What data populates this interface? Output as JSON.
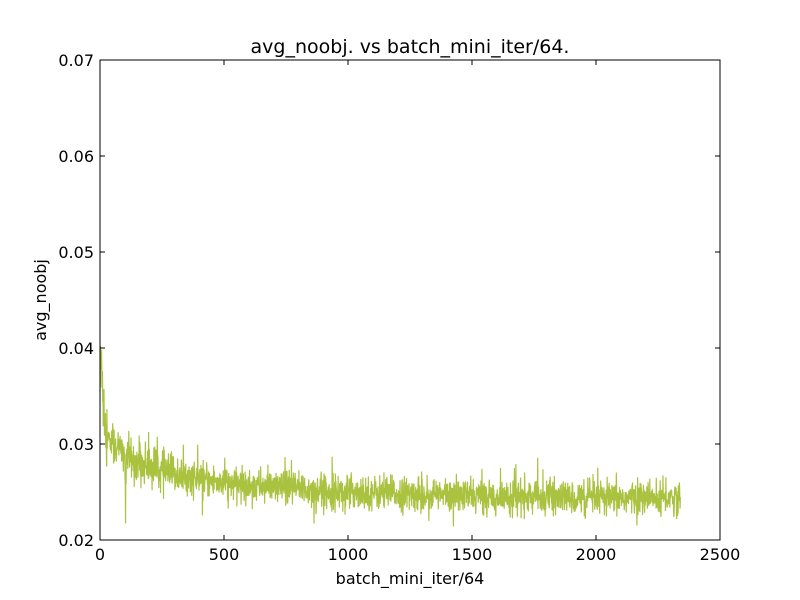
{
  "chart_data": {
    "type": "line",
    "title": "avg_noobj. vs batch_mini_iter/64.",
    "xlabel": "batch_mini_iter/64",
    "ylabel": "avg_noobj",
    "xlim": [
      0,
      2500
    ],
    "ylim": [
      0.02,
      0.07
    ],
    "xticks": [
      0,
      500,
      1000,
      1500,
      2000,
      2500
    ],
    "yticks": [
      0.02,
      0.03,
      0.04,
      0.05,
      0.06,
      0.07
    ],
    "xtick_labels": [
      "0",
      "500",
      "1000",
      "1500",
      "2000",
      "2500"
    ],
    "ytick_labels": [
      "0.02",
      "0.03",
      "0.04",
      "0.05",
      "0.06",
      "0.07"
    ],
    "grid": false,
    "legend": "none",
    "series": [
      {
        "color": "#a9c23f",
        "x": [
          0,
          5,
          10,
          15,
          20,
          25,
          30,
          40,
          50,
          60,
          70,
          80,
          90,
          100,
          103,
          106,
          110,
          120,
          130,
          140,
          150,
          175,
          200,
          225,
          250,
          275,
          300,
          350,
          400,
          450,
          500,
          550,
          600,
          650,
          700,
          750,
          800,
          850,
          900,
          950,
          1000,
          1050,
          1100,
          1150,
          1200,
          1250,
          1300,
          1350,
          1400,
          1450,
          1500,
          1550,
          1600,
          1650,
          1700,
          1750,
          1800,
          1850,
          1900,
          1950,
          2000,
          2050,
          2100,
          2150,
          2200,
          2250,
          2300,
          2340
        ],
        "y": [
          0.0355,
          0.0395,
          0.0375,
          0.034,
          0.033,
          0.032,
          0.031,
          0.0305,
          0.03,
          0.0298,
          0.0296,
          0.0294,
          0.0292,
          0.029,
          0.0218,
          0.0288,
          0.0289,
          0.0286,
          0.0284,
          0.0282,
          0.0281,
          0.0279,
          0.0277,
          0.0275,
          0.0272,
          0.027,
          0.0268,
          0.0265,
          0.0263,
          0.0261,
          0.026,
          0.0258,
          0.0257,
          0.0256,
          0.0255,
          0.0254,
          0.0253,
          0.0252,
          0.0251,
          0.0251,
          0.025,
          0.025,
          0.0249,
          0.0249,
          0.0248,
          0.0248,
          0.0247,
          0.0247,
          0.0247,
          0.0246,
          0.0246,
          0.0246,
          0.0245,
          0.0245,
          0.0245,
          0.0245,
          0.0244,
          0.0244,
          0.0244,
          0.0244,
          0.0244,
          0.0243,
          0.0243,
          0.0244,
          0.0243,
          0.0243,
          0.0244,
          0.0244
        ]
      }
    ]
  }
}
